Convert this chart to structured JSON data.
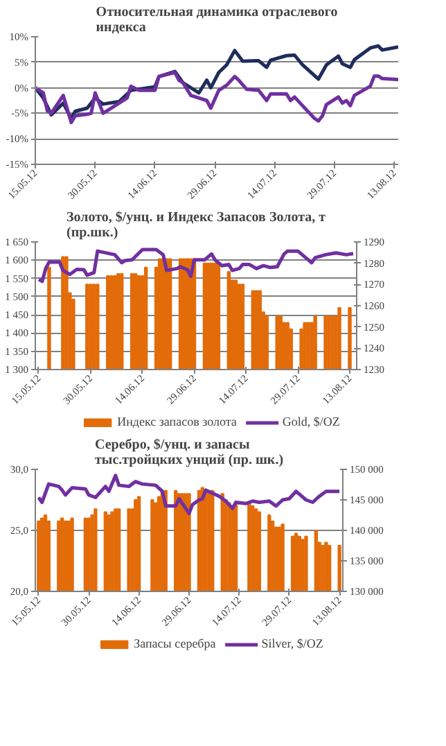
{
  "chart_data": [
    {
      "type": "line",
      "title": "Относительная динамика отраслевого\nиндекса",
      "xlim": [
        "2012-05-15",
        "2012-08-14"
      ],
      "xticks": [
        {
          "value": "2012-05-15",
          "label": "15.05.12"
        },
        {
          "value": "2012-05-30",
          "label": "30.05.12"
        },
        {
          "value": "2012-06-14",
          "label": "14.06.12"
        },
        {
          "value": "2012-06-29",
          "label": "29.06.12"
        },
        {
          "value": "2012-07-14",
          "label": "14.07.12"
        },
        {
          "value": "2012-07-29",
          "label": "29.07.12"
        },
        {
          "value": "2012-08-13",
          "label": "13.08.12"
        }
      ],
      "ylim": [
        -15,
        10
      ],
      "yticks": [
        {
          "value": -15,
          "label": "-15%"
        },
        {
          "value": -10,
          "label": "-10%"
        },
        {
          "value": -5,
          "label": "-5%"
        },
        {
          "value": 0,
          "label": "0%"
        },
        {
          "value": 5,
          "label": "5%"
        },
        {
          "value": 10,
          "label": "10%"
        }
      ],
      "grid": "y",
      "series": [
        {
          "color": "#1f2d5c",
          "x": [
            "2012-05-15",
            "2012-05-17",
            "2012-05-19",
            "2012-05-22",
            "2012-05-24",
            "2012-05-25",
            "2012-05-28",
            "2012-05-30",
            "2012-06-01",
            "2012-06-05",
            "2012-06-08",
            "2012-06-14",
            "2012-06-15",
            "2012-06-19",
            "2012-06-21",
            "2012-06-25",
            "2012-06-27",
            "2012-06-28",
            "2012-06-30",
            "2012-07-02",
            "2012-07-04",
            "2012-07-06",
            "2012-07-10",
            "2012-07-12",
            "2012-07-13",
            "2012-07-17",
            "2012-07-19",
            "2012-07-21",
            "2012-07-25",
            "2012-07-27",
            "2012-07-30",
            "2012-07-31",
            "2012-08-02",
            "2012-08-03",
            "2012-08-07",
            "2012-08-09",
            "2012-08-10",
            "2012-08-14"
          ],
          "values": [
            0,
            -2,
            -5.3,
            -3,
            -6,
            -4.6,
            -4,
            -2,
            -3.2,
            -2.7,
            -0.5,
            0.2,
            2.2,
            3.2,
            1,
            -1,
            1.5,
            0,
            3,
            4.5,
            7.3,
            5.2,
            5.3,
            4,
            5.4,
            6.3,
            6.4,
            4.5,
            1.7,
            4.5,
            6.2,
            4.7,
            4,
            5.5,
            7.8,
            8.2,
            7.4,
            8
          ]
        },
        {
          "color": "#7030a0",
          "x": [
            "2012-05-15",
            "2012-05-17",
            "2012-05-18",
            "2012-05-19",
            "2012-05-22",
            "2012-05-24",
            "2012-05-25",
            "2012-05-28",
            "2012-05-29",
            "2012-05-30",
            "2012-06-01",
            "2012-06-03",
            "2012-06-07",
            "2012-06-08",
            "2012-06-10",
            "2012-06-14",
            "2012-06-15",
            "2012-06-19",
            "2012-06-20",
            "2012-06-21",
            "2012-06-23",
            "2012-06-27",
            "2012-06-28",
            "2012-06-30",
            "2012-07-02",
            "2012-07-04",
            "2012-07-05",
            "2012-07-07",
            "2012-07-10",
            "2012-07-12",
            "2012-07-13",
            "2012-07-17",
            "2012-07-18",
            "2012-07-19",
            "2012-07-21",
            "2012-07-24",
            "2012-07-25",
            "2012-07-26",
            "2012-07-27",
            "2012-07-30",
            "2012-07-31",
            "2012-08-01",
            "2012-08-02",
            "2012-08-03",
            "2012-08-07",
            "2012-08-08",
            "2012-08-09",
            "2012-08-10",
            "2012-08-14"
          ],
          "values": [
            0,
            -1,
            -4.5,
            -5,
            -1.5,
            -6.8,
            -5.5,
            -5.2,
            -5,
            -1,
            -5,
            -4,
            -2,
            0.3,
            -0.5,
            -0.5,
            2.2,
            3,
            1.5,
            1,
            -1.5,
            -2.5,
            -4,
            -0.5,
            0.5,
            2.2,
            1.5,
            -0.3,
            -0.5,
            -2.5,
            -1.2,
            -1.2,
            -2.5,
            -1.8,
            -3.5,
            -6,
            -6.5,
            -5.5,
            -3.3,
            -1.8,
            -3,
            -2.5,
            -3.5,
            -1.5,
            0.3,
            2.3,
            2.3,
            1.8,
            1.6
          ]
        }
      ]
    },
    {
      "type": "bar",
      "title": "Золото, $/унц. и Индекс Запасов Золота, т\n(пр.шк.)",
      "xlim": [
        "2012-05-14",
        "2012-08-15"
      ],
      "xticks": [
        {
          "value": "2012-05-15",
          "label": "15.05.12"
        },
        {
          "value": "2012-05-30",
          "label": "30.05.12"
        },
        {
          "value": "2012-06-14",
          "label": "14.06.12"
        },
        {
          "value": "2012-06-29",
          "label": "29.06.12"
        },
        {
          "value": "2012-07-14",
          "label": "14.07.12"
        },
        {
          "value": "2012-07-29",
          "label": "29.07.12"
        },
        {
          "value": "2012-08-13",
          "label": "13.08.12"
        }
      ],
      "ylim": [
        1300,
        1650
      ],
      "yticks": [
        {
          "value": 1300,
          "label": "1 300"
        },
        {
          "value": 1350,
          "label": "1 350"
        },
        {
          "value": 1400,
          "label": "1 400"
        },
        {
          "value": 1450,
          "label": "1 450"
        },
        {
          "value": 1500,
          "label": "1 500"
        },
        {
          "value": 1550,
          "label": "1 550"
        },
        {
          "value": 1600,
          "label": "1 600"
        },
        {
          "value": 1650,
          "label": "1 650"
        }
      ],
      "y2lim": [
        1230,
        1290
      ],
      "y2ticks": [
        1230,
        1240,
        1250,
        1260,
        1270,
        1280,
        1290
      ],
      "grid": "y",
      "legend": "bottom",
      "series": [
        {
          "name": "Индекс запасов золота",
          "type": "bar",
          "axis": "y2",
          "color": "#e36c0a",
          "x": [
            "2012-05-18",
            "2012-05-22",
            "2012-05-23",
            "2012-05-24",
            "2012-05-25",
            "2012-05-29",
            "2012-05-30",
            "2012-05-31",
            "2012-06-01",
            "2012-06-04",
            "2012-06-05",
            "2012-06-06",
            "2012-06-07",
            "2012-06-08",
            "2012-06-11",
            "2012-06-12",
            "2012-06-13",
            "2012-06-14",
            "2012-06-15",
            "2012-06-18",
            "2012-06-19",
            "2012-06-20",
            "2012-06-21",
            "2012-06-22",
            "2012-06-25",
            "2012-06-26",
            "2012-06-27",
            "2012-06-28",
            "2012-06-29",
            "2012-07-02",
            "2012-07-03",
            "2012-07-04",
            "2012-07-05",
            "2012-07-06",
            "2012-07-09",
            "2012-07-10",
            "2012-07-11",
            "2012-07-12",
            "2012-07-13",
            "2012-07-16",
            "2012-07-17",
            "2012-07-18",
            "2012-07-19",
            "2012-07-20",
            "2012-07-23",
            "2012-07-24",
            "2012-07-25",
            "2012-07-26",
            "2012-07-27",
            "2012-07-30",
            "2012-07-31",
            "2012-08-01",
            "2012-08-02",
            "2012-08-03",
            "2012-08-06",
            "2012-08-07",
            "2012-08-08",
            "2012-08-09",
            "2012-08-10",
            "2012-08-13"
          ],
          "values": [
            1278,
            1283,
            1283,
            1266,
            1263,
            1270,
            1270,
            1270,
            1270,
            1274,
            1274,
            1274,
            1275,
            1275,
            1275,
            1275,
            1274,
            1274,
            1278,
            1278,
            1282,
            1282,
            1282,
            1282,
            1282,
            1282,
            1282,
            1282,
            1282,
            1280,
            1280,
            1280,
            1280,
            1280,
            1276,
            1272,
            1272,
            1270,
            1270,
            1267,
            1267,
            1267,
            1257,
            1255,
            1255,
            1255,
            1252,
            1252,
            1249,
            1249,
            1252,
            1252,
            1252,
            1255,
            1255,
            1255,
            1255,
            1255,
            1259,
            1259
          ]
        },
        {
          "name": "Gold, $/OZ",
          "type": "line",
          "color": "#7030a0",
          "x": [
            "2012-05-15",
            "2012-05-16",
            "2012-05-17",
            "2012-05-18",
            "2012-05-21",
            "2012-05-22",
            "2012-05-24",
            "2012-05-26",
            "2012-05-28",
            "2012-05-29",
            "2012-05-31",
            "2012-06-01",
            "2012-06-05",
            "2012-06-06",
            "2012-06-08",
            "2012-06-09",
            "2012-06-11",
            "2012-06-14",
            "2012-06-18",
            "2012-06-20",
            "2012-06-21",
            "2012-06-24",
            "2012-06-25",
            "2012-06-27",
            "2012-06-28",
            "2012-06-29",
            "2012-07-02",
            "2012-07-04",
            "2012-07-05",
            "2012-07-07",
            "2012-07-09",
            "2012-07-10",
            "2012-07-12",
            "2012-07-13",
            "2012-07-15",
            "2012-07-17",
            "2012-07-19",
            "2012-07-21",
            "2012-07-23",
            "2012-07-25",
            "2012-07-26",
            "2012-07-29",
            "2012-07-31",
            "2012-08-02",
            "2012-08-03",
            "2012-08-06",
            "2012-08-09",
            "2012-08-12",
            "2012-08-14"
          ],
          "values": [
            1547,
            1542,
            1577,
            1595,
            1595,
            1572,
            1561,
            1575,
            1574,
            1559,
            1566,
            1625,
            1617,
            1615,
            1593,
            1599,
            1601,
            1629,
            1629,
            1615,
            1572,
            1577,
            1582,
            1574,
            1556,
            1601,
            1601,
            1617,
            1601,
            1585,
            1588,
            1572,
            1577,
            1588,
            1588,
            1577,
            1585,
            1580,
            1582,
            1617,
            1625,
            1625,
            1609,
            1593,
            1607,
            1615,
            1620,
            1615,
            1618
          ]
        }
      ]
    },
    {
      "type": "bar",
      "title": "Серебро, $/унц. и запасы\nтыс.тройцких унций (пр. шк.)",
      "xlim": [
        "2012-05-14",
        "2012-08-14"
      ],
      "xticks": [
        {
          "value": "2012-05-15",
          "label": "15.05.12"
        },
        {
          "value": "2012-05-30",
          "label": "30.05.12"
        },
        {
          "value": "2012-06-14",
          "label": "14.06.12"
        },
        {
          "value": "2012-06-29",
          "label": "29.06.12"
        },
        {
          "value": "2012-07-14",
          "label": "14.07.12"
        },
        {
          "value": "2012-07-29",
          "label": "29.07.12"
        },
        {
          "value": "2012-08-13",
          "label": "13.08.12"
        }
      ],
      "ylim": [
        20,
        30
      ],
      "yticks": [
        {
          "value": 20,
          "label": "20,0"
        },
        {
          "value": 25,
          "label": "25,0"
        },
        {
          "value": 30,
          "label": "30,0"
        }
      ],
      "y2lim": [
        130000,
        150000
      ],
      "y2ticks": [
        {
          "value": 130000,
          "label": "130 000"
        },
        {
          "value": 135000,
          "label": "135 000"
        },
        {
          "value": 140000,
          "label": "140 000"
        },
        {
          "value": 145000,
          "label": "145 000"
        },
        {
          "value": 150000,
          "label": "150 000"
        }
      ],
      "grid": "y",
      "legend": "bottom",
      "series": [
        {
          "name": "Запасы серебра",
          "type": "bar",
          "axis": "y2",
          "color": "#e36c0a",
          "x": [
            "2012-05-15",
            "2012-05-16",
            "2012-05-17",
            "2012-05-18",
            "2012-05-21",
            "2012-05-22",
            "2012-05-23",
            "2012-05-24",
            "2012-05-25",
            "2012-05-29",
            "2012-05-30",
            "2012-05-31",
            "2012-06-01",
            "2012-06-04",
            "2012-06-05",
            "2012-06-06",
            "2012-06-07",
            "2012-06-08",
            "2012-06-11",
            "2012-06-12",
            "2012-06-13",
            "2012-06-14",
            "2012-06-18",
            "2012-06-19",
            "2012-06-20",
            "2012-06-21",
            "2012-06-22",
            "2012-06-25",
            "2012-06-26",
            "2012-06-27",
            "2012-06-28",
            "2012-06-29",
            "2012-07-02",
            "2012-07-03",
            "2012-07-04",
            "2012-07-05",
            "2012-07-06",
            "2012-07-09",
            "2012-07-10",
            "2012-07-11",
            "2012-07-12",
            "2012-07-13",
            "2012-07-17",
            "2012-07-18",
            "2012-07-19",
            "2012-07-20",
            "2012-07-23",
            "2012-07-24",
            "2012-07-25",
            "2012-07-26",
            "2012-07-27",
            "2012-07-30",
            "2012-07-31",
            "2012-08-01",
            "2012-08-02",
            "2012-08-03",
            "2012-08-06",
            "2012-08-07",
            "2012-08-08",
            "2012-08-09",
            "2012-08-10",
            "2012-08-13"
          ],
          "values": [
            141500,
            142000,
            142500,
            141500,
            141500,
            142000,
            141500,
            141500,
            142000,
            142000,
            142000,
            142500,
            143500,
            143000,
            142500,
            143000,
            143500,
            143500,
            143500,
            143500,
            145000,
            145500,
            145000,
            144500,
            145500,
            146500,
            146500,
            146500,
            146000,
            146000,
            146000,
            146000,
            146500,
            147000,
            146500,
            146500,
            146500,
            146000,
            145000,
            144500,
            144000,
            144500,
            144500,
            144000,
            143500,
            143000,
            142500,
            141500,
            140500,
            140500,
            141000,
            139000,
            139500,
            139000,
            138500,
            139000,
            140000,
            138000,
            137500,
            138000,
            137500,
            137500
          ]
        },
        {
          "name": "Silver, $/OZ",
          "type": "line",
          "color": "#7030a0",
          "x": [
            "2012-05-15",
            "2012-05-16",
            "2012-05-18",
            "2012-05-21",
            "2012-05-22",
            "2012-05-23",
            "2012-05-25",
            "2012-05-29",
            "2012-05-30",
            "2012-06-01",
            "2012-06-04",
            "2012-06-05",
            "2012-06-07",
            "2012-06-08",
            "2012-06-11",
            "2012-06-13",
            "2012-06-15",
            "2012-06-19",
            "2012-06-21",
            "2012-06-22",
            "2012-06-25",
            "2012-06-26",
            "2012-06-29",
            "2012-06-30",
            "2012-07-02",
            "2012-07-03",
            "2012-07-04",
            "2012-07-08",
            "2012-07-10",
            "2012-07-12",
            "2012-07-13",
            "2012-07-16",
            "2012-07-18",
            "2012-07-20",
            "2012-07-23",
            "2012-07-25",
            "2012-07-27",
            "2012-07-29",
            "2012-07-31",
            "2012-08-03",
            "2012-08-05",
            "2012-08-07",
            "2012-08-09",
            "2012-08-13"
          ],
          "values": [
            27.7,
            27.3,
            28.8,
            28.6,
            28.3,
            27.9,
            28.5,
            28.4,
            27.9,
            27.7,
            28.6,
            28.2,
            29.5,
            28.7,
            28.6,
            29,
            28.8,
            28.7,
            28.2,
            27,
            27,
            27.6,
            26.4,
            27.1,
            27.5,
            27.6,
            28.3,
            27.8,
            27.4,
            26.8,
            27.3,
            27.2,
            27.4,
            27.3,
            27.4,
            27,
            27.5,
            27.6,
            28.2,
            27.5,
            27.3,
            27.8,
            28.2,
            28.2
          ]
        }
      ]
    }
  ]
}
